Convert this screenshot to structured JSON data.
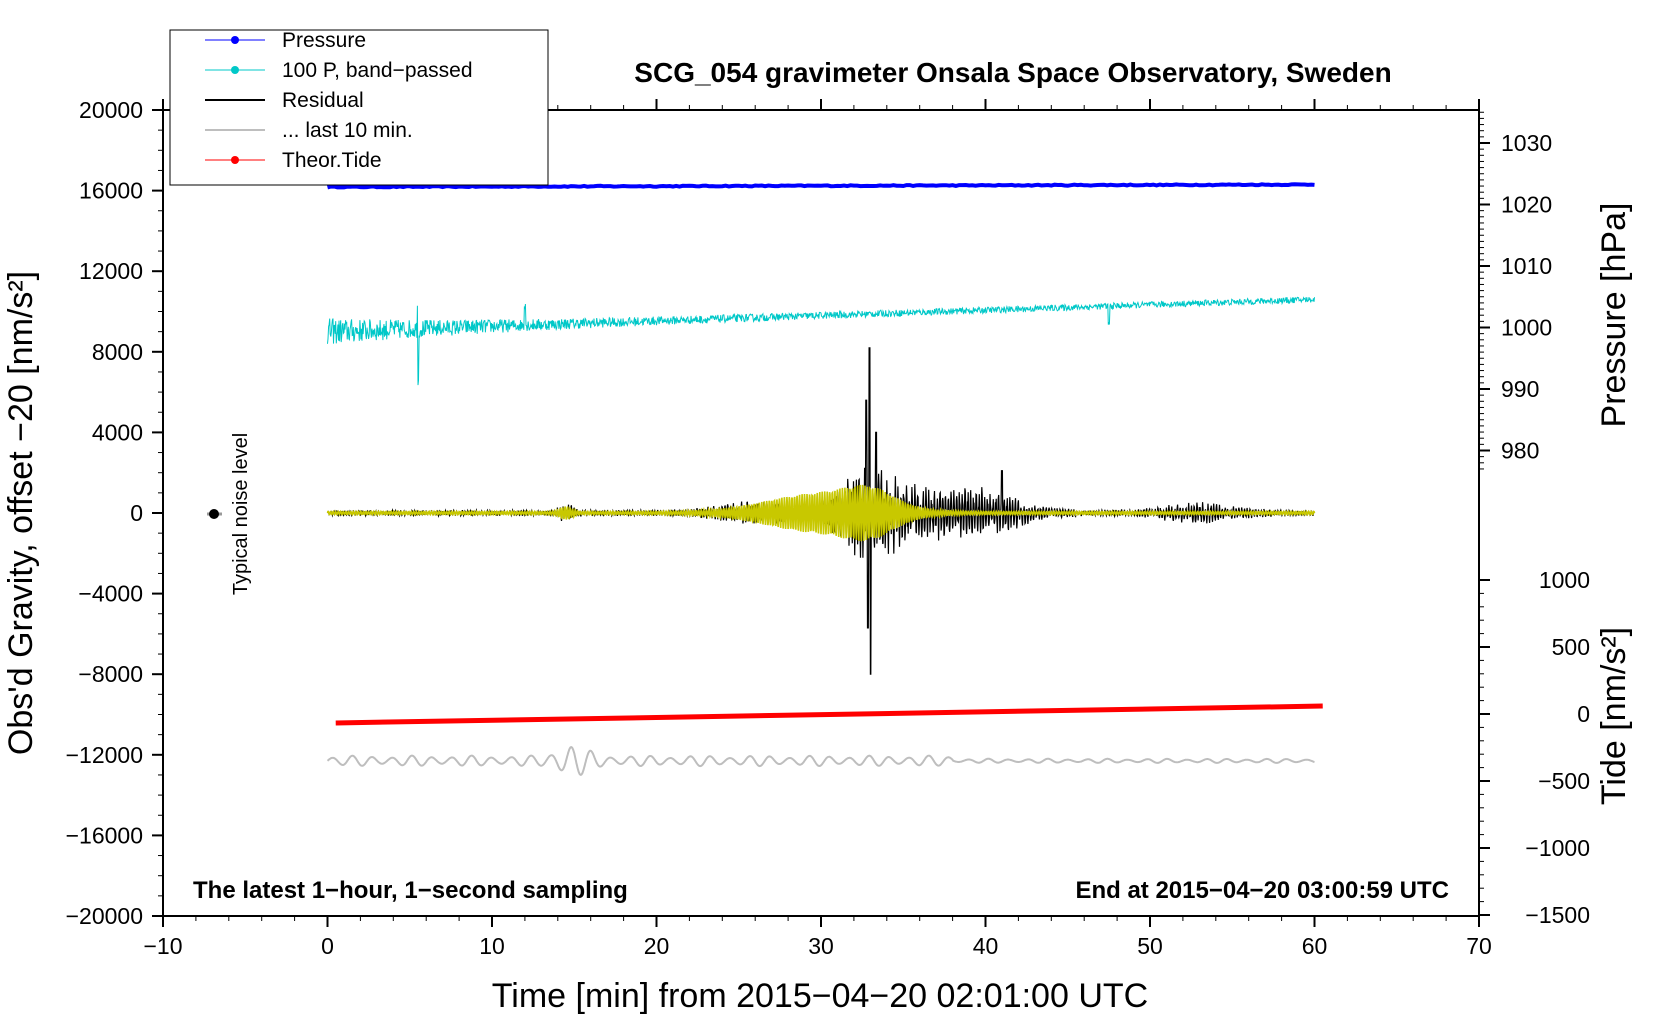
{
  "chart_data": {
    "type": "line",
    "title": "SCG_054 gravimeter Onsala Space Observatory, Sweden",
    "xlabel": "Time [min] from 2015−04−20 02:01:00 UTC",
    "ylabel_left": "Obs'd Gravity, offset −20 [nm/s²]",
    "ylabel_pressure": "Pressure [hPa]",
    "ylabel_tide": "Tide [nm/s²]",
    "note_left": "The latest 1−hour, 1−second sampling",
    "note_right": "End at 2015−04−20 03:00:59 UTC",
    "noise_label": "Typical noise level",
    "xlim": [
      -10,
      70
    ],
    "ylim": [
      -20000,
      20000
    ],
    "pressure_range": [
      1030,
      980
    ],
    "tide_range": [
      1000,
      -1500
    ],
    "x_ticks": [
      "−10",
      "0",
      "10",
      "20",
      "30",
      "40",
      "50",
      "60",
      "70"
    ],
    "y_ticks": [
      "20000",
      "16000",
      "12000",
      "8000",
      "4000",
      "0",
      "−4000",
      "−8000",
      "−12000",
      "−16000",
      "−20000"
    ],
    "pressure_ticks": [
      "1030",
      "1020",
      "1010",
      "1000",
      "990",
      "980"
    ],
    "tide_ticks": [
      "1000",
      "500",
      "0",
      "−500",
      "−1000",
      "−1500"
    ],
    "legend": [
      {
        "name": "Pressure",
        "color": "#0000ff",
        "marker": true
      },
      {
        "name": "100 P, band−passed",
        "color": "#00c8c8",
        "marker": true
      },
      {
        "name": "Residual",
        "color": "#000000",
        "marker": false
      },
      {
        "name": "... last 10 min.",
        "color": "#bebebe",
        "marker": false
      },
      {
        "name": "Theor.Tide",
        "color": "#ff0000",
        "marker": true
      }
    ],
    "series": [
      {
        "name": "Pressure",
        "color": "#0000ff",
        "x_range": [
          0,
          60
        ],
        "y_start": 16180,
        "y_end": 16300
      },
      {
        "name": "100 P, band−passed",
        "color": "#00c8c8",
        "x_range": [
          0,
          60
        ],
        "y_start": 9000,
        "y_end": 10600
      },
      {
        "name": "Residual",
        "color": "#000000",
        "x_range": [
          0,
          60
        ],
        "center": 0,
        "peak_min": 33,
        "peak_max": 8200,
        "peak_minval": -8000
      },
      {
        "name": "Residual (band-passed)",
        "color": "#c8c800",
        "x_range": [
          0,
          60
        ],
        "center": 0
      },
      {
        "name": "... last 10 min.",
        "color": "#bebebe",
        "x_range": [
          0,
          60
        ],
        "center": -12300
      },
      {
        "name": "Theor.Tide",
        "color": "#ff0000",
        "x_range": [
          0.5,
          60.5
        ],
        "y_start": -10420,
        "y_end": -9580
      }
    ]
  }
}
